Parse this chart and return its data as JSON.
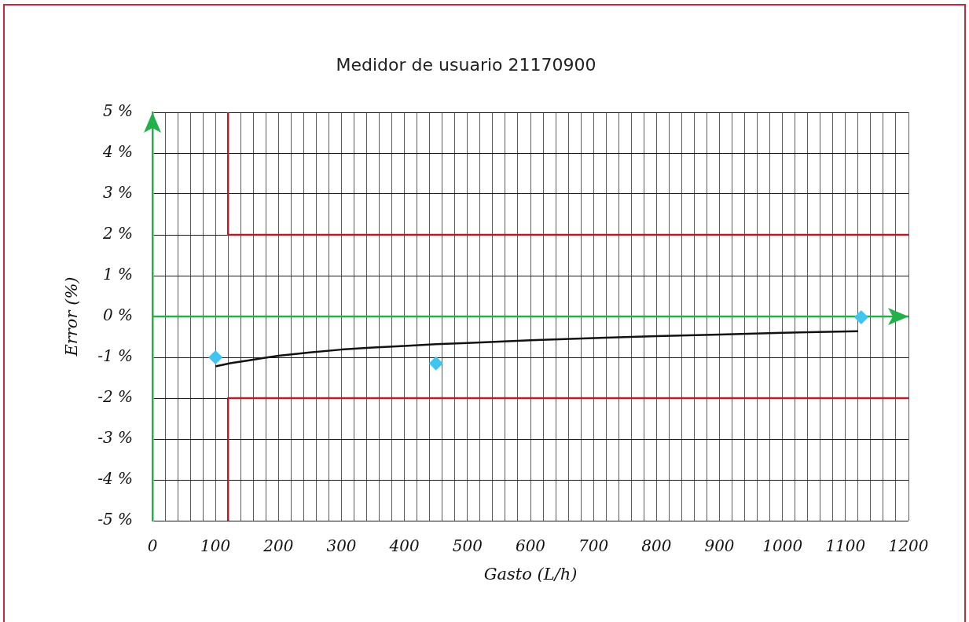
{
  "chart_data": {
    "type": "scatter",
    "title": "Medidor de usuario 21170900",
    "xlabel": "Gasto (L/h)",
    "ylabel": "Error (%)",
    "xlim": [
      0,
      1200
    ],
    "xticks": [
      0,
      {
        "value": 20,
        "label": null
      },
      {
        "value": 40,
        "label": null
      },
      {
        "value": 60,
        "label": null
      },
      {
        "value": 80,
        "label": null
      },
      100,
      {
        "value": 120,
        "label": null
      },
      {
        "value": 140,
        "label": null
      },
      {
        "value": 160,
        "label": null
      },
      {
        "value": 180,
        "label": null
      },
      200,
      {
        "value": 220,
        "label": null
      },
      {
        "value": 240,
        "label": null
      },
      {
        "value": 260,
        "label": null
      },
      {
        "value": 280,
        "label": null
      },
      300,
      {
        "value": 320,
        "label": null
      },
      {
        "value": 340,
        "label": null
      },
      {
        "value": 360,
        "label": null
      },
      {
        "value": 380,
        "label": null
      },
      400,
      {
        "value": 420,
        "label": null
      },
      {
        "value": 440,
        "label": null
      },
      {
        "value": 460,
        "label": null
      },
      {
        "value": 480,
        "label": null
      },
      500,
      {
        "value": 520,
        "label": null
      },
      {
        "value": 540,
        "label": null
      },
      {
        "value": 560,
        "label": null
      },
      {
        "value": 580,
        "label": null
      },
      600,
      {
        "value": 620,
        "label": null
      },
      {
        "value": 640,
        "label": null
      },
      {
        "value": 660,
        "label": null
      },
      {
        "value": 680,
        "label": null
      },
      700,
      {
        "value": 720,
        "label": null
      },
      {
        "value": 740,
        "label": null
      },
      {
        "value": 760,
        "label": null
      },
      {
        "value": 780,
        "label": null
      },
      800,
      {
        "value": 820,
        "label": null
      },
      {
        "value": 840,
        "label": null
      },
      {
        "value": 860,
        "label": null
      },
      {
        "value": 880,
        "label": null
      },
      900,
      {
        "value": 920,
        "label": null
      },
      {
        "value": 940,
        "label": null
      },
      {
        "value": 960,
        "label": null
      },
      {
        "value": 980,
        "label": null
      },
      1000,
      {
        "value": 1020,
        "label": null
      },
      {
        "value": 1040,
        "label": null
      },
      {
        "value": 1060,
        "label": null
      },
      {
        "value": 1080,
        "label": null
      },
      1100,
      {
        "value": 1120,
        "label": null
      },
      {
        "value": 1140,
        "label": null
      },
      {
        "value": 1160,
        "label": null
      },
      {
        "value": 1180,
        "label": null
      },
      1200
    ],
    "ylim": [
      -5,
      5
    ],
    "yticks": [
      {
        "value": -5,
        "label": "-5 %"
      },
      {
        "value": -4,
        "label": "-4 %"
      },
      {
        "value": -3,
        "label": "-3 %"
      },
      {
        "value": -2,
        "label": "-2 %"
      },
      {
        "value": -1,
        "label": "-1 %"
      },
      {
        "value": 0,
        "label": "0 %"
      },
      {
        "value": 1,
        "label": "1 %"
      },
      {
        "value": 2,
        "label": "2 %"
      },
      {
        "value": 3,
        "label": "3 %"
      },
      {
        "value": 4,
        "label": "4 %"
      },
      {
        "value": 5,
        "label": "5 %"
      }
    ],
    "grid": true,
    "series": [
      {
        "type": "line",
        "color": "#b0202a",
        "marker": "none",
        "x": [
          120,
          120,
          1200
        ],
        "values": [
          5,
          2,
          2
        ]
      },
      {
        "type": "line",
        "color": "#b0202a",
        "marker": "none",
        "x": [
          120,
          120,
          1200
        ],
        "values": [
          -5,
          -2,
          -2
        ]
      },
      {
        "type": "line",
        "color": "#111111",
        "marker": "none",
        "x": [
          100,
          125,
          150,
          175,
          200,
          250,
          300,
          350,
          400,
          450,
          500,
          600,
          700,
          800,
          900,
          1000,
          1120
        ],
        "values": [
          -1.22,
          -1.14,
          -1.08,
          -1.02,
          -0.96,
          -0.88,
          -0.81,
          -0.76,
          -0.72,
          -0.68,
          -0.65,
          -0.58,
          -0.53,
          -0.48,
          -0.44,
          -0.4,
          -0.36
        ]
      },
      {
        "type": "scatter",
        "color": "#40c4f0",
        "marker": "diamond",
        "x": [
          100,
          450,
          1125
        ],
        "values": [
          -1.0,
          -1.15,
          -0.02
        ]
      }
    ],
    "ref_lines": [
      {
        "axis": "y",
        "value": 0,
        "color": "#22b04a"
      }
    ]
  }
}
